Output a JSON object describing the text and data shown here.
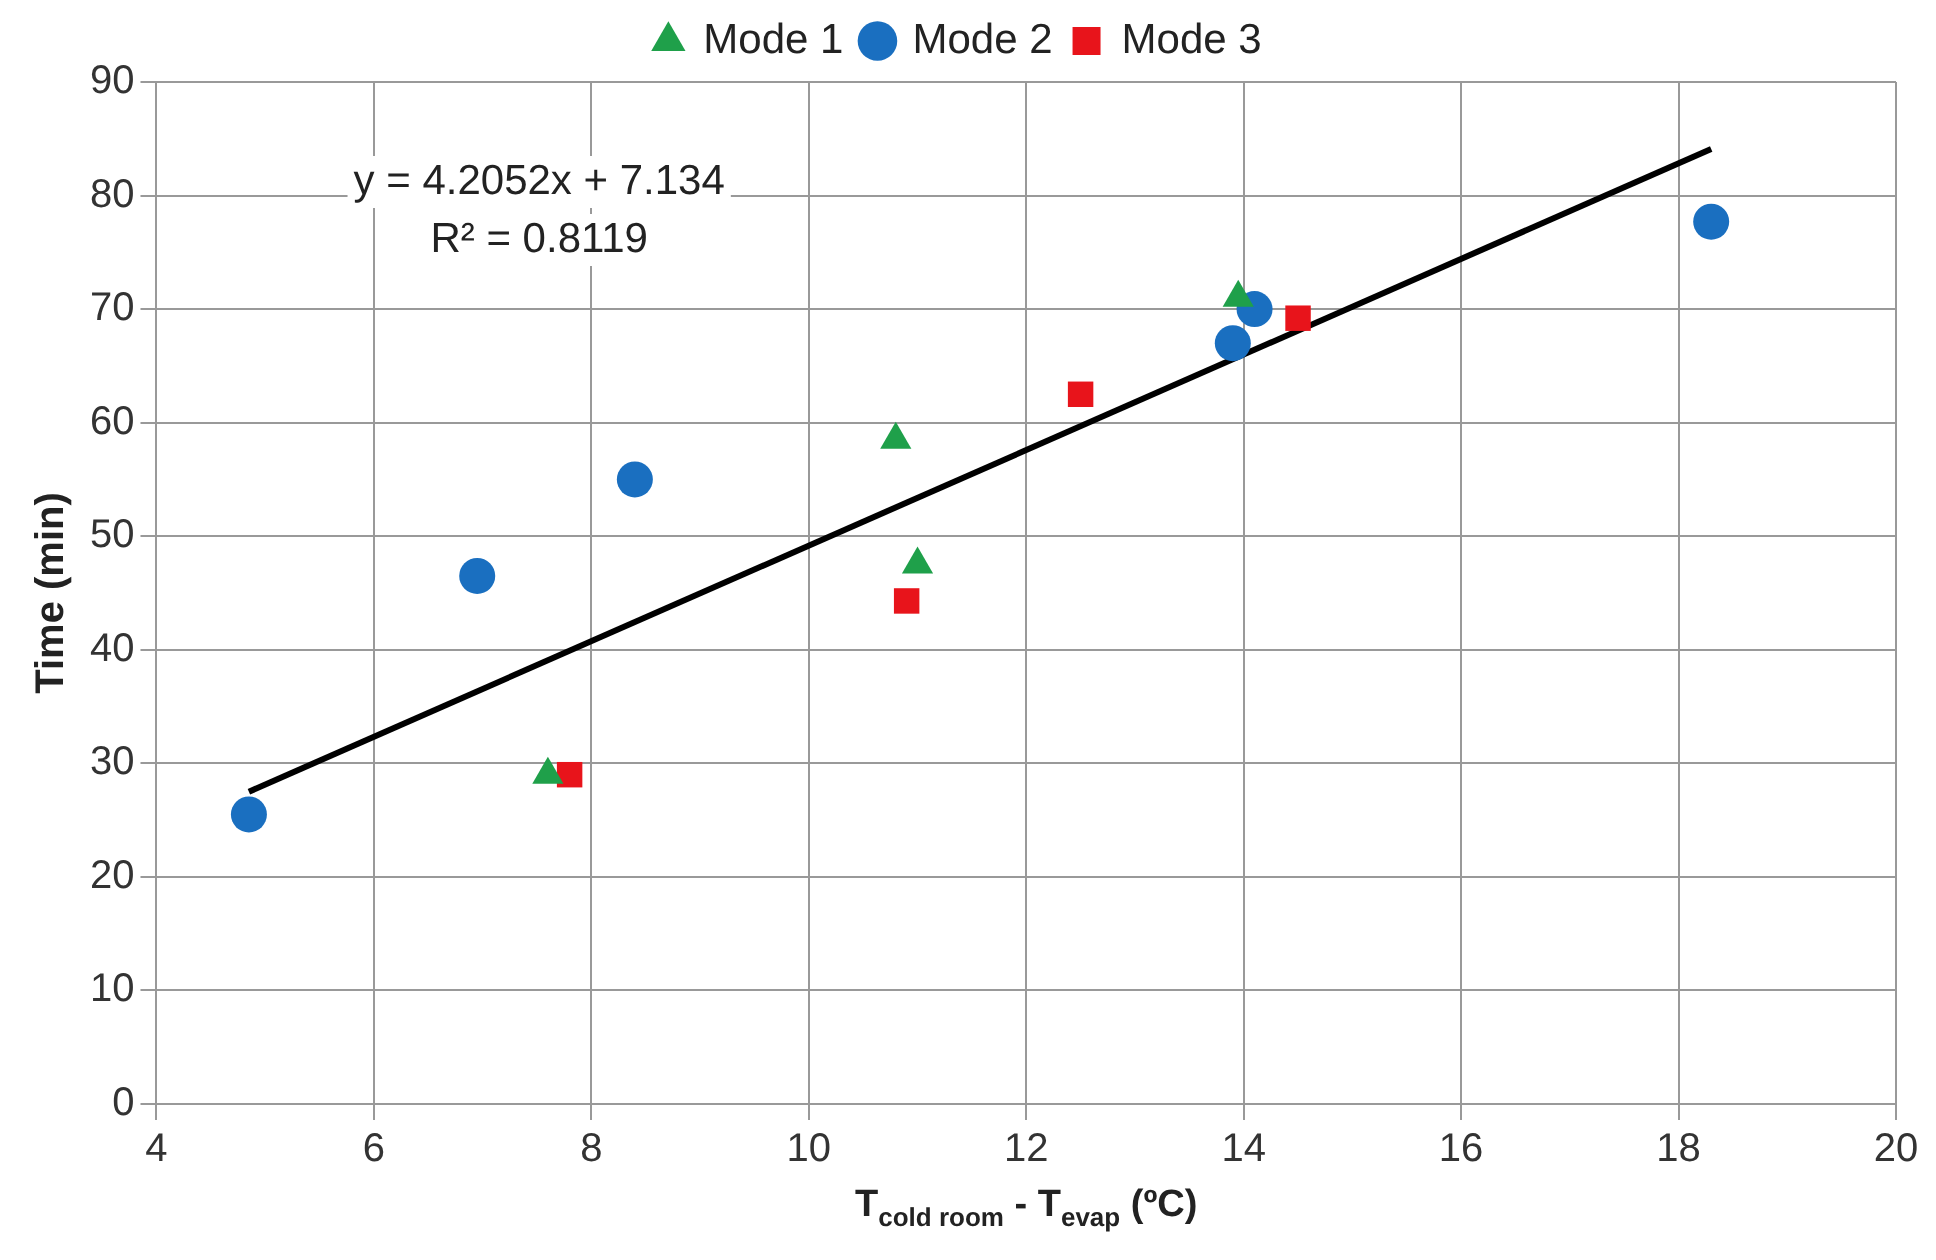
{
  "chart_data": {
    "type": "scatter",
    "xlabel": "T$_{cold room}$ - T$_{evap}$ (ºC)",
    "ylabel": "Time (min)",
    "xlim": [
      4,
      20
    ],
    "xticks": [
      4,
      6,
      8,
      10,
      12,
      14,
      16,
      18,
      20
    ],
    "ylim": [
      0,
      90
    ],
    "yticks": [
      0,
      10,
      20,
      30,
      40,
      50,
      60,
      70,
      80,
      90
    ],
    "grid": true,
    "legend": "top",
    "annotations": [
      "y = 4.2052x + 7.134",
      "R² = 0.8119"
    ],
    "series": [
      {
        "name": "Mode 1",
        "color": "#1fa04a",
        "marker": "triangle",
        "x": [
          7.6,
          10.8,
          11,
          13.95
        ],
        "values": [
          29,
          58.5,
          47.5,
          71
        ]
      },
      {
        "name": "Mode 2",
        "color": "#1a6fc0",
        "marker": "circle",
        "x": [
          4.85,
          6.95,
          8.4,
          13.9,
          14.1,
          18.3
        ],
        "values": [
          25.5,
          46.5,
          55,
          67,
          70,
          77.7
        ]
      },
      {
        "name": "Mode 3",
        "color": "#e8141b",
        "marker": "square",
        "x": [
          7.8,
          10.9,
          12.5,
          14.5
        ],
        "values": [
          29,
          44.3,
          62.5,
          69.2
        ]
      },
      {
        "type": "line",
        "color": "#000000",
        "marker": "none",
        "x": [
          4.85,
          18.3
        ],
        "values": [
          27.5,
          84.1
        ]
      }
    ]
  }
}
